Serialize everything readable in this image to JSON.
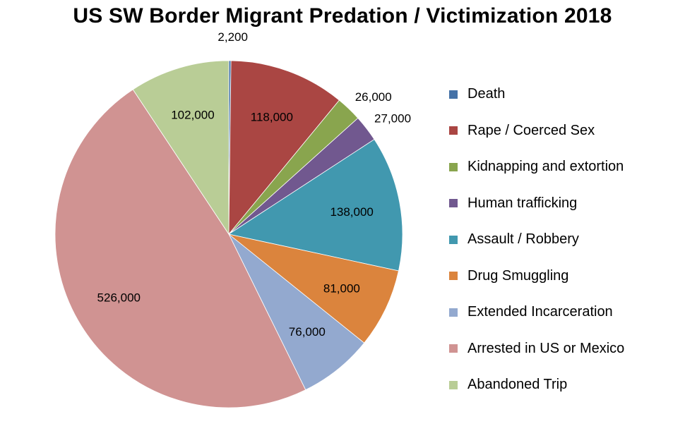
{
  "chart_data": {
    "type": "pie",
    "title": "US SW Border Migrant Predation / Victimization 2018",
    "legend_position": "right",
    "slices": [
      {
        "name": "Death",
        "value": 2200,
        "label": "2,200",
        "color": "#4572A7"
      },
      {
        "name": "Rape / Coerced Sex",
        "value": 118000,
        "label": "118,000",
        "color": "#AA4643"
      },
      {
        "name": "Kidnapping and extortion",
        "value": 26000,
        "label": "26,000",
        "color": "#89A54E"
      },
      {
        "name": "Human trafficking",
        "value": 27000,
        "label": "27,000",
        "color": "#71588F"
      },
      {
        "name": "Assault / Robbery",
        "value": 138000,
        "label": "138,000",
        "color": "#4198AF"
      },
      {
        "name": "Drug Smuggling",
        "value": 81000,
        "label": "81,000",
        "color": "#DB843D"
      },
      {
        "name": "Extended Incarceration",
        "value": 76000,
        "label": "76,000",
        "color": "#93A9CF"
      },
      {
        "name": "Arrested in US or Mexico",
        "value": 526000,
        "label": "526,000",
        "color": "#D09392"
      },
      {
        "name": "Abandoned Trip",
        "value": 102000,
        "label": "102,000",
        "color": "#B9CD96"
      }
    ]
  }
}
